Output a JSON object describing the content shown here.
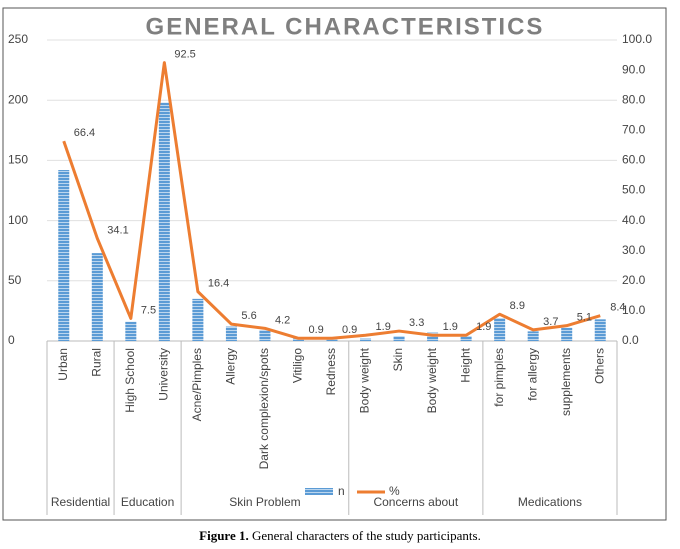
{
  "chart_data": {
    "type": "bar-line",
    "title": "GENERAL CHARACTERISTICS",
    "categories": [
      "Urban",
      "Rural",
      "High School",
      "University",
      "Acne/Pimples",
      "Allergy",
      "Dark complexion/spots",
      "Vitiligo",
      "Redness",
      "Body weight",
      "Skin",
      "Body weight",
      "Height",
      "for pimples",
      "for allergy",
      "supplements",
      "Others"
    ],
    "groups": [
      {
        "label": "Residential",
        "count": 2
      },
      {
        "label": "Education",
        "count": 2
      },
      {
        "label": "Skin Problem",
        "count": 5
      },
      {
        "label": "Concerns about",
        "count": 4
      },
      {
        "label": "Medications",
        "count": 4
      }
    ],
    "series": [
      {
        "name": "n",
        "color": "#5b9bd5",
        "type": "bar",
        "values": [
          142,
          73,
          16,
          198,
          35,
          12,
          9,
          2,
          2,
          2,
          4,
          7,
          4,
          19,
          8,
          11,
          18
        ]
      },
      {
        "name": "%",
        "color": "#ed7d31",
        "type": "line",
        "axis": "y2",
        "values": [
          66.4,
          34.1,
          7.5,
          92.5,
          16.4,
          5.6,
          4.2,
          0.9,
          0.9,
          1.9,
          3.3,
          1.9,
          1.9,
          8.9,
          3.7,
          5.1,
          8.4
        ]
      }
    ],
    "ylim": [
      0,
      250
    ],
    "yticks": [
      0,
      50,
      100,
      150,
      200,
      250
    ],
    "y2lim": [
      0,
      100
    ],
    "y2ticks": [
      {
        "value": 0,
        "label": "0.0"
      },
      {
        "value": 10,
        "label": "10.0"
      },
      {
        "value": 20,
        "label": "20.0"
      },
      {
        "value": 30,
        "label": "30.0"
      },
      {
        "value": 40,
        "label": "40.0"
      },
      {
        "value": 50,
        "label": "50.0"
      },
      {
        "value": 60,
        "label": "60.0"
      },
      {
        "value": 70,
        "label": "70.0"
      },
      {
        "value": 80,
        "label": "80.0"
      },
      {
        "value": 90,
        "label": "90.0"
      },
      {
        "value": 100,
        "label": "100.0"
      }
    ],
    "grid": true,
    "legend": "bottom"
  },
  "caption": {
    "label": "Figure 1.",
    "text": "General characters of the study participants."
  }
}
